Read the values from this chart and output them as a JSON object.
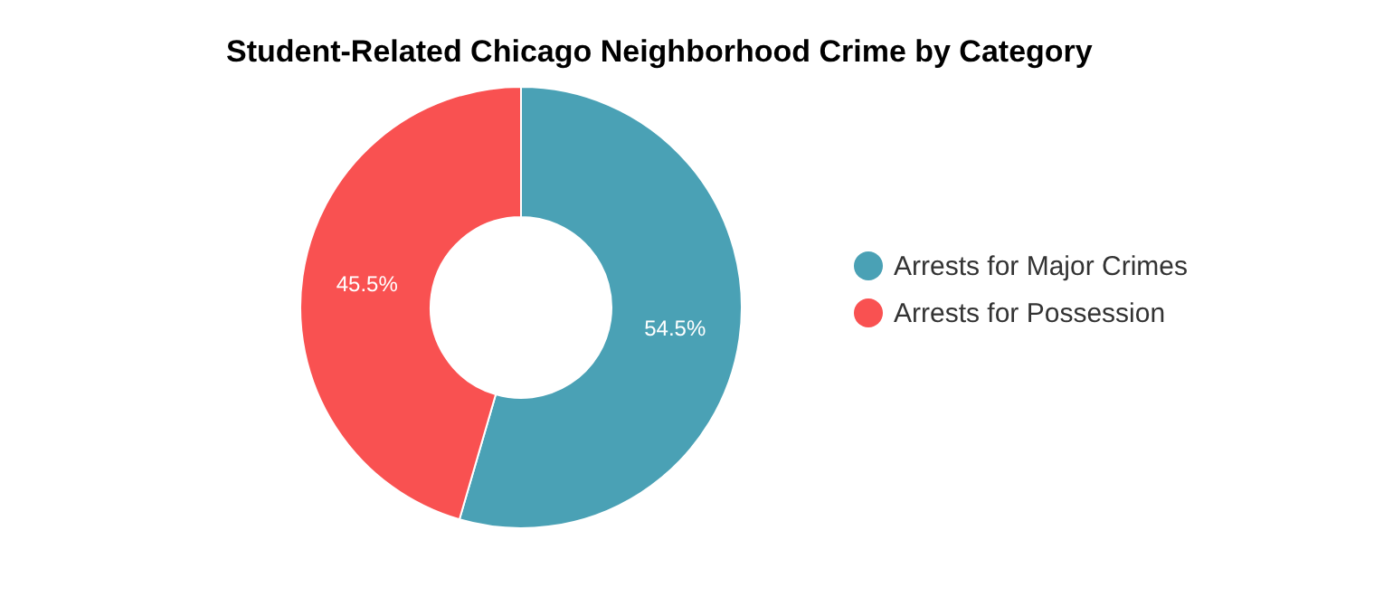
{
  "chart_data": {
    "type": "donut",
    "title": "Student-Related Chicago Neighborhood Crime by Category",
    "categories": [
      "Arrests for Major Crimes",
      "Arrests for Possession"
    ],
    "values": [
      54.5,
      45.5
    ],
    "colors": [
      "#4aa1b5",
      "#f95151"
    ],
    "value_labels": [
      "54.5%",
      "45.5%"
    ],
    "legend": "right"
  }
}
